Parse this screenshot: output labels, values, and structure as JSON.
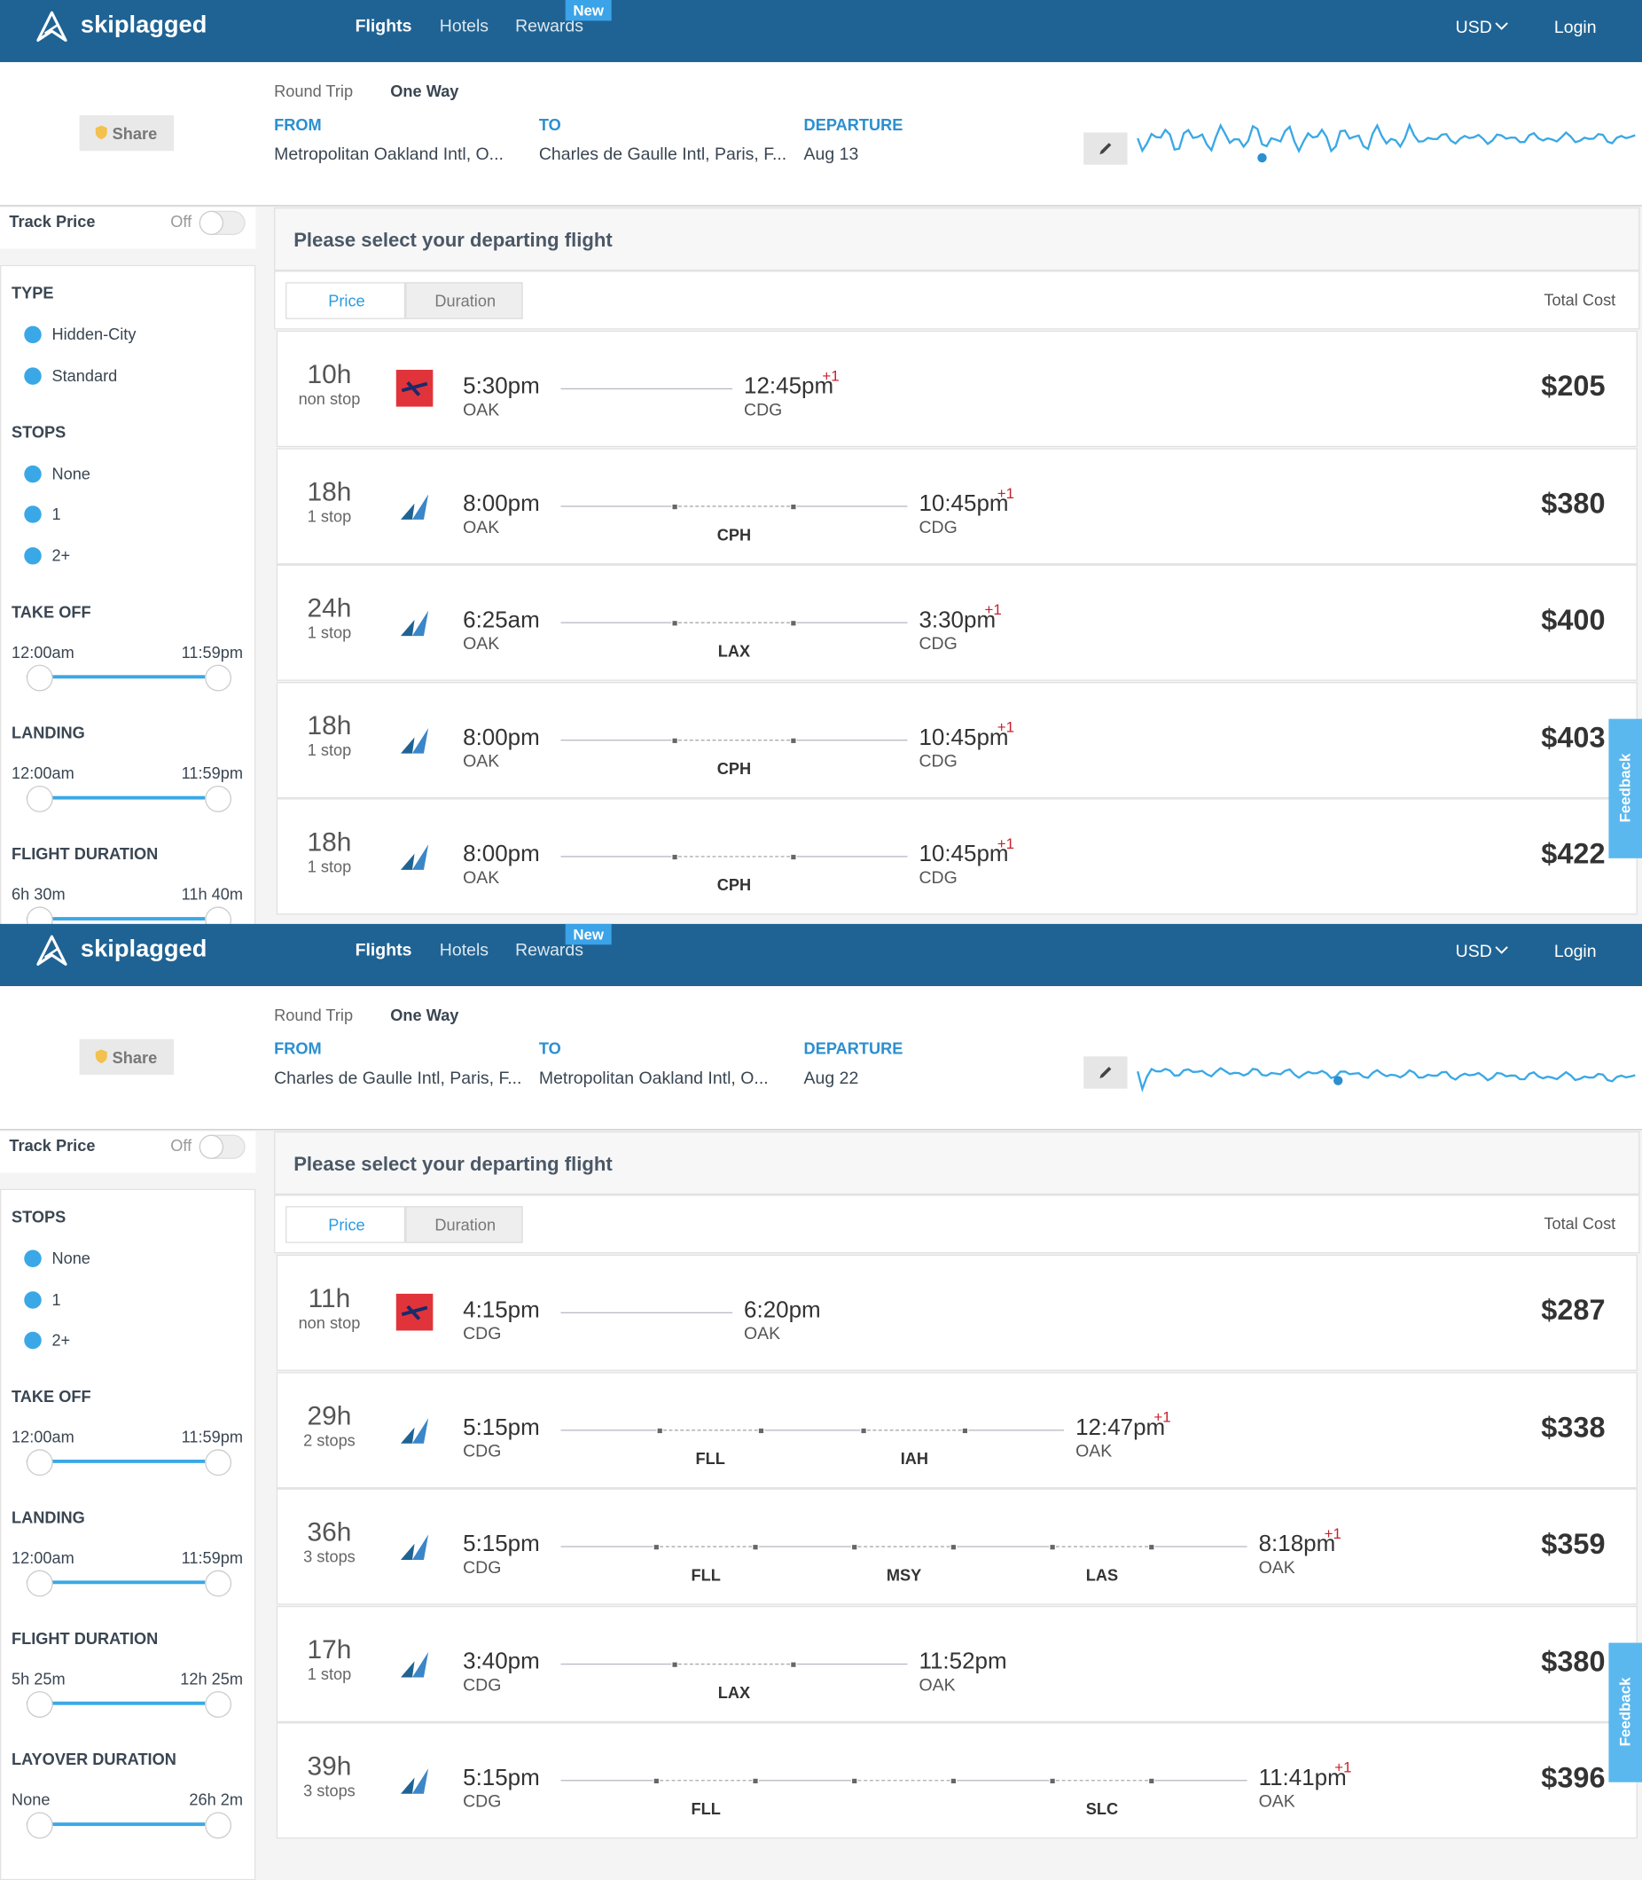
{
  "screens": [
    {
      "nav": {
        "logo": "skiplagged",
        "links": [
          "Flights",
          "Hotels",
          "Rewards"
        ],
        "badge": "New",
        "currency": "USD",
        "login": "Login"
      },
      "search": {
        "share": "Share",
        "trip_types": [
          "Round Trip",
          "One Way"
        ],
        "from_label": "FROM",
        "from": "Metropolitan Oakland Intl, O...",
        "to_label": "TO",
        "to": "Charles de Gaulle Intl, Paris, F...",
        "departure_label": "DEPARTURE",
        "departure": "Aug 13"
      },
      "sidebar": {
        "track_price": "Track Price",
        "toggle": "Off",
        "sections": [
          {
            "title": "TYPE",
            "options": [
              "Hidden-City",
              "Standard"
            ]
          },
          {
            "title": "STOPS",
            "options": [
              "None",
              "1",
              "2+"
            ]
          },
          {
            "title": "TAKE OFF",
            "range": [
              "12:00am",
              "11:59pm"
            ]
          },
          {
            "title": "LANDING",
            "range": [
              "12:00am",
              "11:59pm"
            ]
          },
          {
            "title": "FLIGHT DURATION",
            "range": [
              "6h 30m",
              "11h 40m"
            ]
          }
        ]
      },
      "results": {
        "heading": "Please select your departing flight",
        "sort": [
          "Price",
          "Duration"
        ],
        "total_cost": "Total Cost",
        "flights": [
          {
            "duration": "10h",
            "stops": "non stop",
            "depart": "5:30pm",
            "from": "OAK",
            "arrive": "12:45pm",
            "day_offset": "+1",
            "to": "CDG",
            "layovers": [],
            "price": "$205"
          },
          {
            "duration": "18h",
            "stops": "1 stop",
            "depart": "8:00pm",
            "from": "OAK",
            "arrive": "10:45pm",
            "day_offset": "+1",
            "to": "CDG",
            "layovers": [
              "CPH"
            ],
            "price": "$380"
          },
          {
            "duration": "24h",
            "stops": "1 stop",
            "depart": "6:25am",
            "from": "OAK",
            "arrive": "3:30pm",
            "day_offset": "+1",
            "to": "CDG",
            "layovers": [
              "LAX"
            ],
            "price": "$400"
          },
          {
            "duration": "18h",
            "stops": "1 stop",
            "depart": "8:00pm",
            "from": "OAK",
            "arrive": "10:45pm",
            "day_offset": "+1",
            "to": "CDG",
            "layovers": [
              "CPH"
            ],
            "price": "$403"
          },
          {
            "duration": "18h",
            "stops": "1 stop",
            "depart": "8:00pm",
            "from": "OAK",
            "arrive": "10:45pm",
            "day_offset": "+1",
            "to": "CDG",
            "layovers": [
              "CPH"
            ],
            "price": "$422"
          }
        ]
      },
      "feedback": "Feedback"
    },
    {
      "nav": {
        "logo": "skiplagged",
        "links": [
          "Flights",
          "Hotels",
          "Rewards"
        ],
        "badge": "New",
        "currency": "USD",
        "login": "Login"
      },
      "search": {
        "share": "Share",
        "trip_types": [
          "Round Trip",
          "One Way"
        ],
        "from_label": "FROM",
        "from": "Charles de Gaulle Intl, Paris, F...",
        "to_label": "TO",
        "to": "Metropolitan Oakland Intl, O...",
        "departure_label": "DEPARTURE",
        "departure": "Aug 22"
      },
      "sidebar": {
        "track_price": "Track Price",
        "toggle": "Off",
        "sections": [
          {
            "title": "STOPS",
            "options": [
              "None",
              "1",
              "2+"
            ]
          },
          {
            "title": "TAKE OFF",
            "range": [
              "12:00am",
              "11:59pm"
            ]
          },
          {
            "title": "LANDING",
            "range": [
              "12:00am",
              "11:59pm"
            ]
          },
          {
            "title": "FLIGHT DURATION",
            "range": [
              "5h 25m",
              "12h 25m"
            ]
          },
          {
            "title": "LAYOVER DURATION",
            "range": [
              "None",
              "26h 2m"
            ]
          }
        ]
      },
      "results": {
        "heading": "Please select your departing flight",
        "sort": [
          "Price",
          "Duration"
        ],
        "total_cost": "Total Cost",
        "flights": [
          {
            "duration": "11h",
            "stops": "non stop",
            "depart": "4:15pm",
            "from": "CDG",
            "arrive": "6:20pm",
            "to": "OAK",
            "layovers": [],
            "price": "$287"
          },
          {
            "duration": "29h",
            "stops": "2 stops",
            "depart": "5:15pm",
            "from": "CDG",
            "arrive": "12:47pm",
            "day_offset": "+1",
            "to": "OAK",
            "layovers": [
              "FLL",
              "IAH"
            ],
            "price": "$338"
          },
          {
            "duration": "36h",
            "stops": "3 stops",
            "depart": "5:15pm",
            "from": "CDG",
            "arrive": "8:18pm",
            "day_offset": "+1",
            "to": "OAK",
            "layovers": [
              "FLL",
              "MSY",
              "LAS"
            ],
            "price": "$359"
          },
          {
            "duration": "17h",
            "stops": "1 stop",
            "depart": "3:40pm",
            "from": "CDG",
            "arrive": "11:52pm",
            "to": "OAK",
            "layovers": [
              "LAX"
            ],
            "price": "$380"
          },
          {
            "duration": "39h",
            "stops": "3 stops",
            "depart": "5:15pm",
            "from": "CDG",
            "arrive": "11:41pm",
            "day_offset": "+1",
            "to": "OAK",
            "layovers": [
              "FLL",
              null,
              "SLC"
            ],
            "price": "$396"
          }
        ]
      },
      "feedback": "Feedback"
    }
  ]
}
